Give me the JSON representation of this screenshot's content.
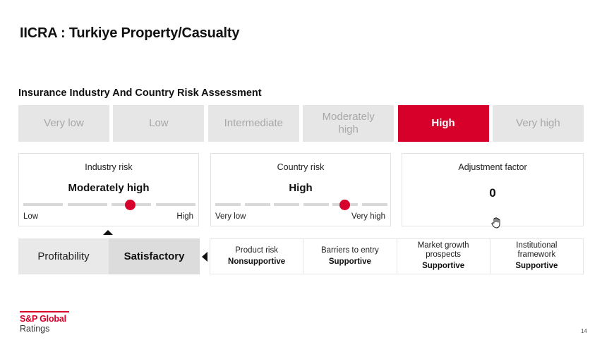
{
  "slide": {
    "title": "IICRA : Turkiye Property/Casualty",
    "section_title": "Insurance Industry And Country Risk Assessment",
    "page_number": "14"
  },
  "risk_scale": {
    "levels": [
      "Very low",
      "Low",
      "Intermediate",
      "Moderately high",
      "High",
      "Very high"
    ],
    "selected": "High",
    "highlight_color": "#d6002a"
  },
  "industry_risk": {
    "label": "Industry risk",
    "value": "Moderately high",
    "scale_low": "Low",
    "scale_high": "High",
    "position_fraction": 0.62
  },
  "country_risk": {
    "label": "Country risk",
    "value": "High",
    "scale_low": "Very low",
    "scale_high": "Very high",
    "position_fraction": 0.75
  },
  "adjustment_factor": {
    "label": "Adjustment factor",
    "value": "0"
  },
  "profitability": {
    "label": "Profitability",
    "value": "Satisfactory"
  },
  "factors": [
    {
      "label": "Product risk",
      "value": "Nonsupportive"
    },
    {
      "label": "Barriers to entry",
      "value": "Supportive"
    },
    {
      "label": "Market growth prospects",
      "value": "Supportive"
    },
    {
      "label": "Institutional framework",
      "value": "Supportive"
    }
  ],
  "logo": {
    "name": "S&P Global",
    "sub": "Ratings"
  },
  "icons": {
    "cursor": "hand-cursor-icon"
  }
}
